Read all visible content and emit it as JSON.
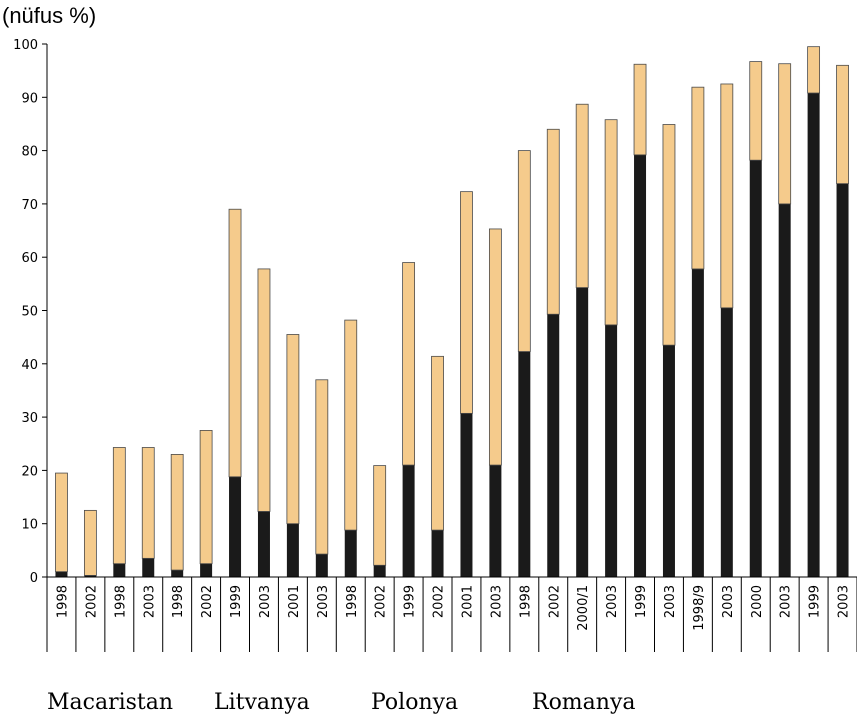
{
  "chart_data": {
    "type": "bar",
    "stacked": true,
    "unit_label": "(nüfus %)",
    "ylim": [
      0,
      100
    ],
    "yticks": [
      0,
      10,
      20,
      30,
      40,
      50,
      60,
      70,
      80,
      90,
      100
    ],
    "grid": false,
    "categories": [
      "1998",
      "2002",
      "1998",
      "2003",
      "1998",
      "2002",
      "1999",
      "2003",
      "2001",
      "2003",
      "1998",
      "2002",
      "1999",
      "2002",
      "2001",
      "2003",
      "1998",
      "2002",
      "2000/1",
      "2003",
      "1999",
      "2003",
      "1998/9",
      "2003",
      "2000",
      "2003",
      "1999",
      "2003"
    ],
    "series": [
      {
        "color": "#1a1a1a",
        "values": [
          1,
          0.3,
          2.5,
          3.5,
          1.3,
          2.5,
          18.8,
          12.3,
          10,
          4.3,
          8.8,
          2.2,
          21,
          8.8,
          30.7,
          21,
          42.3,
          49.3,
          54.3,
          47.3,
          79.2,
          43.5,
          57.8,
          50.5,
          78.2,
          70,
          90.8,
          73.8
        ]
      },
      {
        "color": "#f5cb8c",
        "values": [
          18.5,
          12.2,
          21.8,
          20.8,
          21.7,
          25,
          50.2,
          45.5,
          35.5,
          32.7,
          39.4,
          18.7,
          38,
          32.6,
          41.6,
          44.3,
          37.7,
          34.7,
          34.4,
          38.5,
          17,
          41.4,
          34.1,
          42,
          18.5,
          26.3,
          8.7,
          22.2
        ]
      }
    ],
    "group_labels": [
      "Macaristan",
      "Litvanya",
      "Polonya",
      "Romanya"
    ]
  }
}
